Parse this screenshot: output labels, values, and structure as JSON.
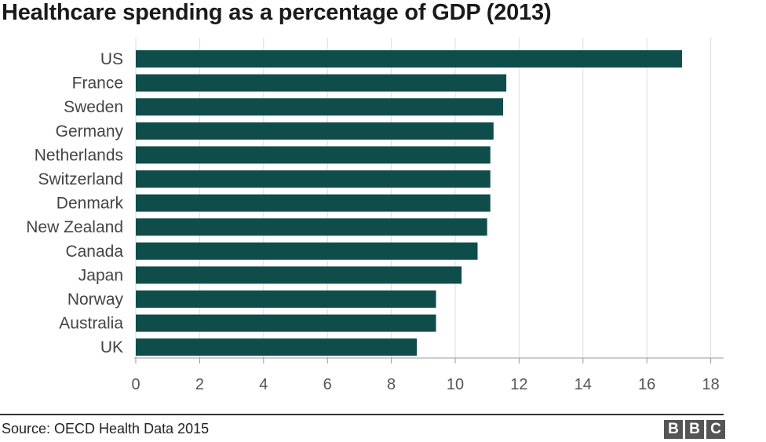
{
  "title": "Healthcare spending as a percentage of GDP (2013)",
  "source": "Source: OECD Health Data 2015",
  "logo": {
    "letters": [
      "B",
      "B",
      "C"
    ]
  },
  "colors": {
    "bar": "#0f4d4a",
    "grid": "#dddddd",
    "axis": "#999999"
  },
  "chart_data": {
    "type": "bar",
    "orientation": "horizontal",
    "title": "Healthcare spending as a percentage of GDP (2013)",
    "categories": [
      "US",
      "France",
      "Sweden",
      "Germany",
      "Netherlands",
      "Switzerland",
      "Denmark",
      "New Zealand",
      "Canada",
      "Japan",
      "Norway",
      "Australia",
      "UK"
    ],
    "values": [
      17.1,
      11.6,
      11.5,
      11.2,
      11.1,
      11.1,
      11.1,
      11.0,
      10.7,
      10.2,
      9.4,
      9.4,
      8.8
    ],
    "xlabel": "",
    "ylabel": "",
    "xlim": [
      0,
      18
    ],
    "xticks": [
      0,
      2,
      4,
      6,
      8,
      10,
      12,
      14,
      16,
      18
    ],
    "grid": true
  }
}
